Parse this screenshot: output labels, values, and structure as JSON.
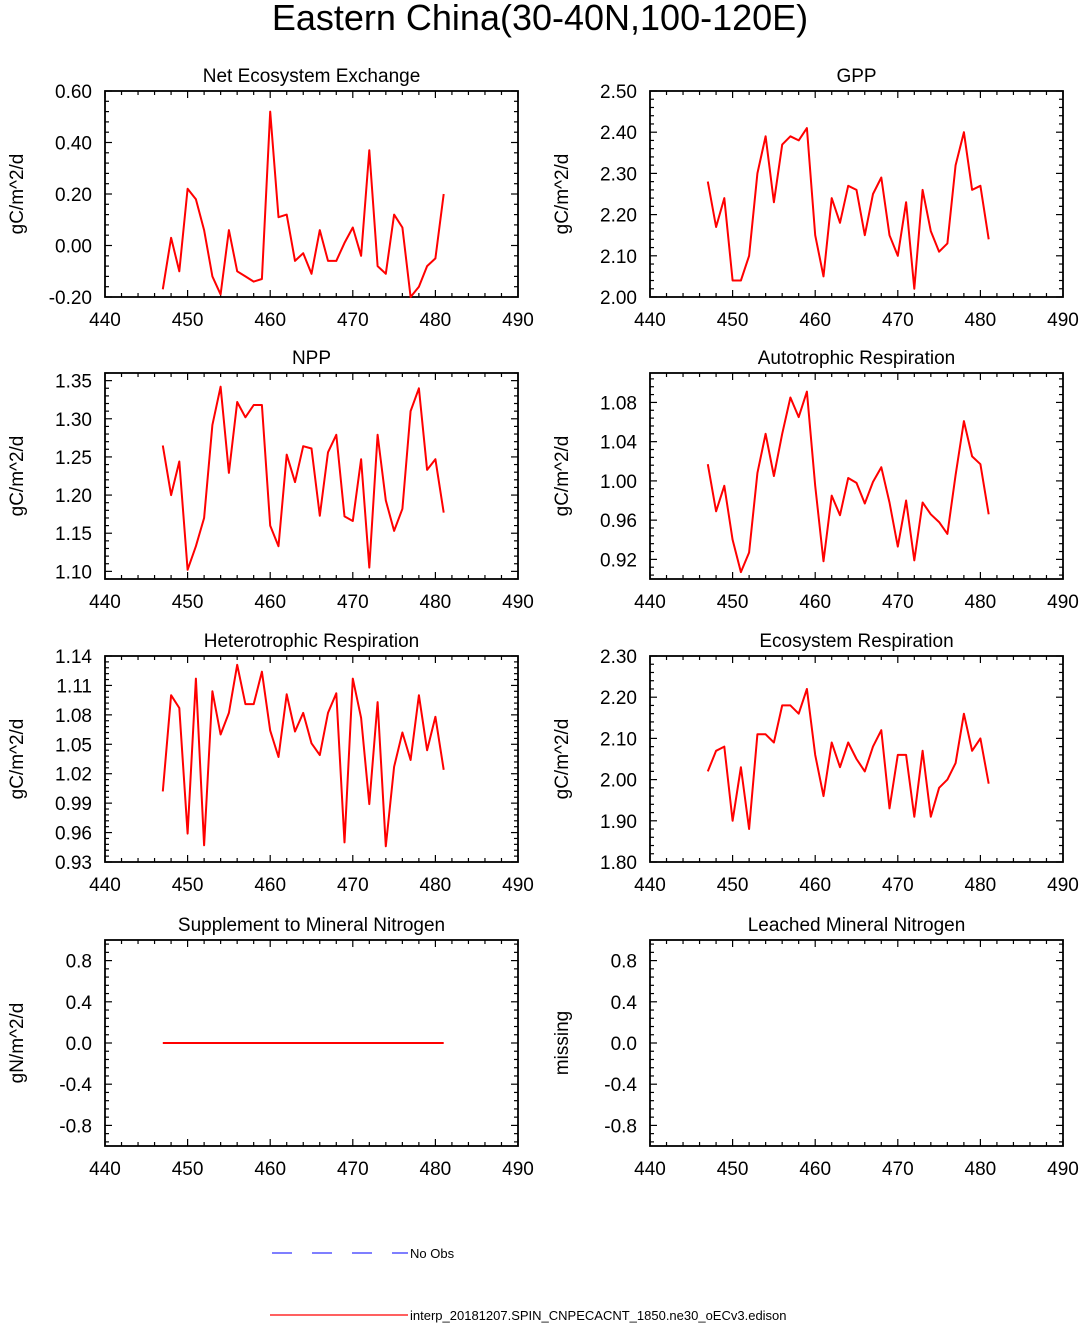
{
  "figure": {
    "title": "Eastern China(30-40N,100-120E)",
    "x_years": [
      447,
      448,
      449,
      450,
      451,
      452,
      453,
      454,
      455,
      456,
      457,
      458,
      459,
      460,
      461,
      462,
      463,
      464,
      465,
      466,
      467,
      468,
      469,
      470,
      471,
      472,
      473,
      474,
      475,
      476,
      477,
      478,
      479,
      480,
      481
    ],
    "legend": {
      "obs_label": "No Obs",
      "model_label": "interp_20181207.SPIN_CNPECACNT_1850.ne30_oECv3.edison",
      "obs_color": "#3333ff",
      "model_color": "#ff0000"
    }
  },
  "chart_data": [
    {
      "type": "line",
      "title": "Net Ecosystem Exchange",
      "ylabel": "gC/m^2/d",
      "xlim": [
        440,
        490
      ],
      "xticks": [
        "440",
        "450",
        "460",
        "470",
        "480",
        "490"
      ],
      "ylim": [
        -0.2,
        0.6
      ],
      "yticks": [
        "-0.20",
        "0.00",
        "0.20",
        "0.40",
        "0.60"
      ],
      "series": [
        {
          "name": "model",
          "values": [
            -0.17,
            0.03,
            -0.1,
            0.22,
            0.18,
            0.06,
            -0.12,
            -0.19,
            0.06,
            -0.1,
            -0.12,
            -0.14,
            -0.13,
            0.52,
            0.11,
            0.12,
            -0.06,
            -0.03,
            -0.11,
            0.06,
            -0.06,
            -0.06,
            0.01,
            0.07,
            -0.04,
            0.37,
            -0.08,
            -0.11,
            0.12,
            0.07,
            -0.2,
            -0.16,
            -0.08,
            -0.05,
            0.2
          ]
        }
      ]
    },
    {
      "type": "line",
      "title": "GPP",
      "ylabel": "gC/m^2/d",
      "xlim": [
        440,
        490
      ],
      "xticks": [
        "440",
        "450",
        "460",
        "470",
        "480",
        "490"
      ],
      "ylim": [
        2.0,
        2.5
      ],
      "yticks": [
        "2.00",
        "2.10",
        "2.20",
        "2.30",
        "2.40",
        "2.50"
      ],
      "series": [
        {
          "name": "model",
          "values": [
            2.28,
            2.17,
            2.24,
            2.04,
            2.04,
            2.1,
            2.3,
            2.39,
            2.23,
            2.37,
            2.39,
            2.38,
            2.41,
            2.15,
            2.05,
            2.24,
            2.18,
            2.27,
            2.26,
            2.15,
            2.25,
            2.29,
            2.15,
            2.1,
            2.23,
            2.02,
            2.26,
            2.16,
            2.11,
            2.13,
            2.32,
            2.4,
            2.26,
            2.27,
            2.14
          ]
        }
      ]
    },
    {
      "type": "line",
      "title": "NPP",
      "ylabel": "gC/m^2/d",
      "xlim": [
        440,
        490
      ],
      "xticks": [
        "440",
        "450",
        "460",
        "470",
        "480",
        "490"
      ],
      "ylim": [
        1.09,
        1.36
      ],
      "yticks": [
        "1.10",
        "1.15",
        "1.20",
        "1.25",
        "1.30",
        "1.35"
      ],
      "series": [
        {
          "name": "model",
          "values": [
            1.265,
            1.2,
            1.244,
            1.102,
            1.133,
            1.17,
            1.292,
            1.342,
            1.229,
            1.322,
            1.302,
            1.318,
            1.318,
            1.16,
            1.133,
            1.253,
            1.217,
            1.264,
            1.261,
            1.173,
            1.256,
            1.279,
            1.172,
            1.166,
            1.247,
            1.105,
            1.279,
            1.193,
            1.153,
            1.182,
            1.31,
            1.34,
            1.233,
            1.247,
            1.177
          ]
        }
      ]
    },
    {
      "type": "line",
      "title": "Autotrophic Respiration",
      "ylabel": "gC/m^2/d",
      "xlim": [
        440,
        490
      ],
      "xticks": [
        "440",
        "450",
        "460",
        "470",
        "480",
        "490"
      ],
      "ylim": [
        0.9,
        1.11
      ],
      "yticks": [
        "0.92",
        "0.96",
        "1.00",
        "1.04",
        "1.08"
      ],
      "series": [
        {
          "name": "model",
          "values": [
            1.017,
            0.969,
            0.995,
            0.94,
            0.907,
            0.927,
            1.008,
            1.048,
            1.005,
            1.048,
            1.085,
            1.065,
            1.091,
            0.995,
            0.918,
            0.985,
            0.965,
            1.003,
            0.998,
            0.977,
            0.999,
            1.014,
            0.978,
            0.933,
            0.98,
            0.919,
            0.978,
            0.966,
            0.958,
            0.946,
            1.006,
            1.061,
            1.025,
            1.017,
            0.966
          ]
        }
      ]
    },
    {
      "type": "line",
      "title": "Heterotrophic Respiration",
      "ylabel": "gC/m^2/d",
      "xlim": [
        440,
        490
      ],
      "xticks": [
        "440",
        "450",
        "460",
        "470",
        "480",
        "490"
      ],
      "ylim": [
        0.93,
        1.14
      ],
      "yticks": [
        "0.93",
        "0.96",
        "0.99",
        "1.02",
        "1.05",
        "1.08",
        "1.11",
        "1.14"
      ],
      "series": [
        {
          "name": "model",
          "values": [
            1.002,
            1.1,
            1.087,
            0.959,
            1.117,
            0.947,
            1.104,
            1.06,
            1.082,
            1.131,
            1.091,
            1.091,
            1.124,
            1.064,
            1.037,
            1.101,
            1.063,
            1.082,
            1.051,
            1.039,
            1.082,
            1.102,
            0.95,
            1.117,
            1.077,
            0.989,
            1.093,
            0.946,
            1.027,
            1.062,
            1.034,
            1.1,
            1.044,
            1.078,
            1.024
          ]
        }
      ]
    },
    {
      "type": "line",
      "title": "Ecosystem Respiration",
      "ylabel": "gC/m^2/d",
      "xlim": [
        440,
        490
      ],
      "xticks": [
        "440",
        "450",
        "460",
        "470",
        "480",
        "490"
      ],
      "ylim": [
        1.8,
        2.3
      ],
      "yticks": [
        "1.80",
        "1.90",
        "2.00",
        "2.10",
        "2.20",
        "2.30"
      ],
      "series": [
        {
          "name": "model",
          "values": [
            2.02,
            2.07,
            2.08,
            1.9,
            2.03,
            1.88,
            2.11,
            2.11,
            2.09,
            2.18,
            2.18,
            2.16,
            2.22,
            2.06,
            1.96,
            2.09,
            2.03,
            2.09,
            2.05,
            2.02,
            2.08,
            2.12,
            1.93,
            2.06,
            2.06,
            1.91,
            2.07,
            1.91,
            1.98,
            2.0,
            2.04,
            2.16,
            2.07,
            2.1,
            1.99
          ]
        }
      ]
    },
    {
      "type": "line",
      "title": "Supplement to Mineral Nitrogen",
      "ylabel": "gN/m^2/d",
      "xlim": [
        440,
        490
      ],
      "xticks": [
        "440",
        "450",
        "460",
        "470",
        "480",
        "490"
      ],
      "ylim": [
        -1.0,
        1.0
      ],
      "yticks": [
        "-0.8",
        "-0.4",
        "0.0",
        "0.4",
        "0.8"
      ],
      "series": [
        {
          "name": "model",
          "values": [
            0,
            0,
            0,
            0,
            0,
            0,
            0,
            0,
            0,
            0,
            0,
            0,
            0,
            0,
            0,
            0,
            0,
            0,
            0,
            0,
            0,
            0,
            0,
            0,
            0,
            0,
            0,
            0,
            0,
            0,
            0,
            0,
            0,
            0,
            0
          ]
        }
      ]
    },
    {
      "type": "line",
      "title": "Leached Mineral Nitrogen",
      "ylabel": "missing",
      "xlim": [
        440,
        490
      ],
      "xticks": [
        "440",
        "450",
        "460",
        "470",
        "480",
        "490"
      ],
      "ylim": [
        -1.0,
        1.0
      ],
      "yticks": [
        "-0.8",
        "-0.4",
        "0.0",
        "0.4",
        "0.8"
      ],
      "series": []
    }
  ]
}
